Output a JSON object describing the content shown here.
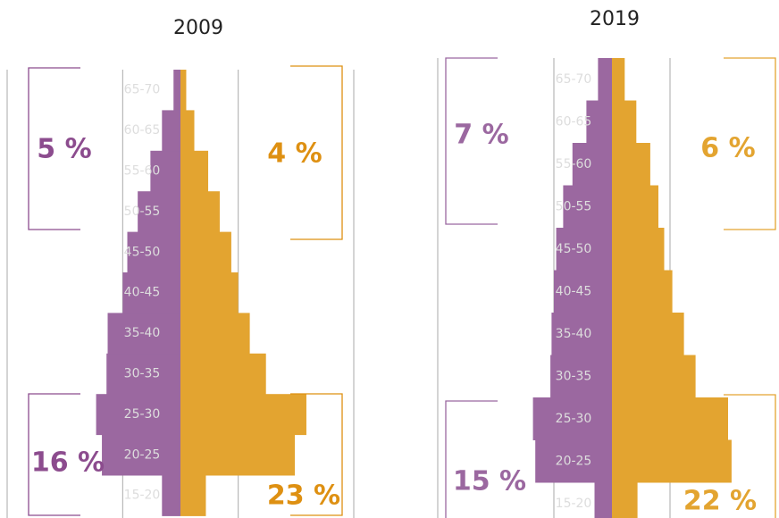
{
  "chart_data": [
    {
      "type": "pyramid",
      "title": "2009",
      "categories": [
        "15-20",
        "20-25",
        "25-30",
        "30-35",
        "35-40",
        "40-45",
        "45-50",
        "50-55",
        "55-60",
        "60-65",
        "65-70"
      ],
      "series": [
        {
          "color": "#9b68a0",
          "values": [
            -0.16,
            -0.68,
            -0.73,
            -0.64,
            -0.63,
            -0.5,
            -0.46,
            -0.37,
            -0.26,
            -0.16,
            -0.06
          ]
        },
        {
          "color": "#e3a430",
          "values": [
            0.22,
            0.99,
            1.09,
            0.74,
            0.6,
            0.5,
            0.44,
            0.34,
            0.24,
            0.12,
            0.05
          ]
        }
      ],
      "xlim": [
        -1.5,
        1.5
      ],
      "xticks": [
        -1.5,
        -0.5,
        0.5,
        1.5
      ],
      "grid": true,
      "annotations": [
        {
          "text": "5 %",
          "color": "#8c4c8e"
        },
        {
          "text": "4 %",
          "color": "#de9012"
        },
        {
          "text": "16 %",
          "color": "#8c4c8e"
        },
        {
          "text": "23 %",
          "color": "#de9012"
        }
      ]
    },
    {
      "type": "pyramid",
      "title": "2019",
      "categories": [
        "15-20",
        "20-25",
        "25-30",
        "30-35",
        "35-40",
        "40-45",
        "45-50",
        "50-55",
        "55-60",
        "60-65",
        "65-70"
      ],
      "series": [
        {
          "color": "#9b68a0",
          "values": [
            -0.15,
            -0.66,
            -0.68,
            -0.53,
            -0.52,
            -0.5,
            -0.48,
            -0.42,
            -0.34,
            -0.22,
            -0.12
          ]
        },
        {
          "color": "#e3a430",
          "values": [
            0.22,
            1.03,
            1.0,
            0.72,
            0.62,
            0.52,
            0.45,
            0.4,
            0.33,
            0.21,
            0.11
          ]
        }
      ],
      "xlim": [
        -1.5,
        1.5
      ],
      "xticks": [
        -1.5,
        -0.5,
        0.5
      ],
      "grid": true,
      "annotations": [
        {
          "text": "7 %",
          "color": "#9b68a0"
        },
        {
          "text": "6 %",
          "color": "#e3a430"
        },
        {
          "text": "15 %",
          "color": "#9b68a0"
        },
        {
          "text": "22 %",
          "color": "#e3a430"
        }
      ]
    }
  ]
}
